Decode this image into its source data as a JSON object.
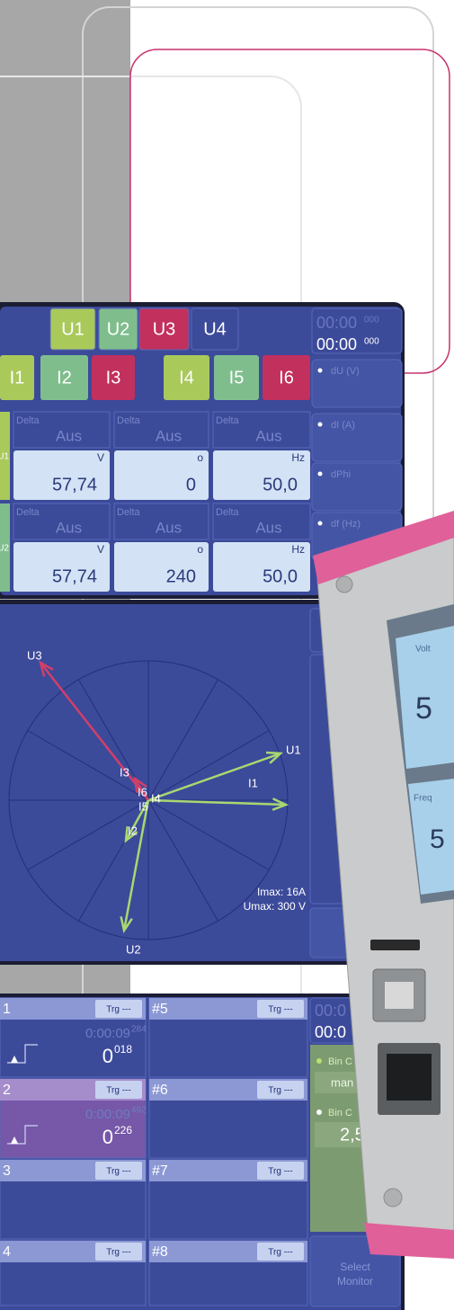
{
  "values_screen": {
    "voltage_tabs": [
      "U1",
      "U2",
      "U3",
      "U4"
    ],
    "current_tabs": [
      "I1",
      "I2",
      "I3",
      "I4",
      "I5",
      "I6"
    ],
    "time_faded": {
      "main": "00:00",
      "ms": "000"
    },
    "time": {
      "main": "00:00",
      "ms": "000"
    },
    "side_buttons": [
      "dU  (V)",
      "dI  (A)",
      "dPhi",
      "df  (Hz)"
    ],
    "rows": [
      {
        "label": "U1",
        "cells": [
          {
            "caption": "Delta",
            "state": "Aus",
            "unit": "V",
            "value": "57,74"
          },
          {
            "caption": "Delta",
            "state": "Aus",
            "unit": "o",
            "value": "0"
          },
          {
            "caption": "Delta",
            "state": "Aus",
            "unit": "Hz",
            "value": "50,0"
          }
        ]
      },
      {
        "label": "U2",
        "cells": [
          {
            "caption": "Delta",
            "state": "Aus",
            "unit": "V",
            "value": "57,74"
          },
          {
            "caption": "Delta",
            "state": "Aus",
            "unit": "o",
            "value": "240"
          },
          {
            "caption": "Delta",
            "state": "Aus",
            "unit": "Hz",
            "value": "50,0"
          }
        ]
      }
    ]
  },
  "vector_screen": {
    "labels": [
      "U3",
      "U1",
      "I1",
      "I3",
      "I6",
      "I4",
      "I5",
      "I2",
      "U2"
    ],
    "imax": "Imax:  16A",
    "umax": "Umax: 300 V"
  },
  "recorder_screen": {
    "channels": [
      {
        "name": "1",
        "trigger": "Trg ---",
        "time": "0:00:09",
        "ms": "284",
        "count": "0",
        "count_small": "018"
      },
      {
        "name": "2",
        "trigger": "Trg ---",
        "time": "0:00:09",
        "ms": "492",
        "count": "0",
        "count_small": "226"
      },
      {
        "name": "3",
        "trigger": "Trg ---"
      },
      {
        "name": "4",
        "trigger": "Trg ---"
      },
      {
        "name": "#5",
        "trigger": "Trg ---"
      },
      {
        "name": "#6",
        "trigger": "Trg ---"
      },
      {
        "name": "#7",
        "trigger": "Trg ---"
      },
      {
        "name": "#8",
        "trigger": "Trg ---"
      }
    ],
    "time_faded": "00:0",
    "time": "00:0",
    "bin_label_1": "Bin C",
    "bin_value_1": "man",
    "bin_label_2": "Bin C",
    "bin_value_2": "2,5",
    "select_button": [
      "Select",
      "Monitor"
    ]
  },
  "device": {
    "labels": [
      "Volt",
      "5",
      "Freq",
      "5"
    ]
  }
}
